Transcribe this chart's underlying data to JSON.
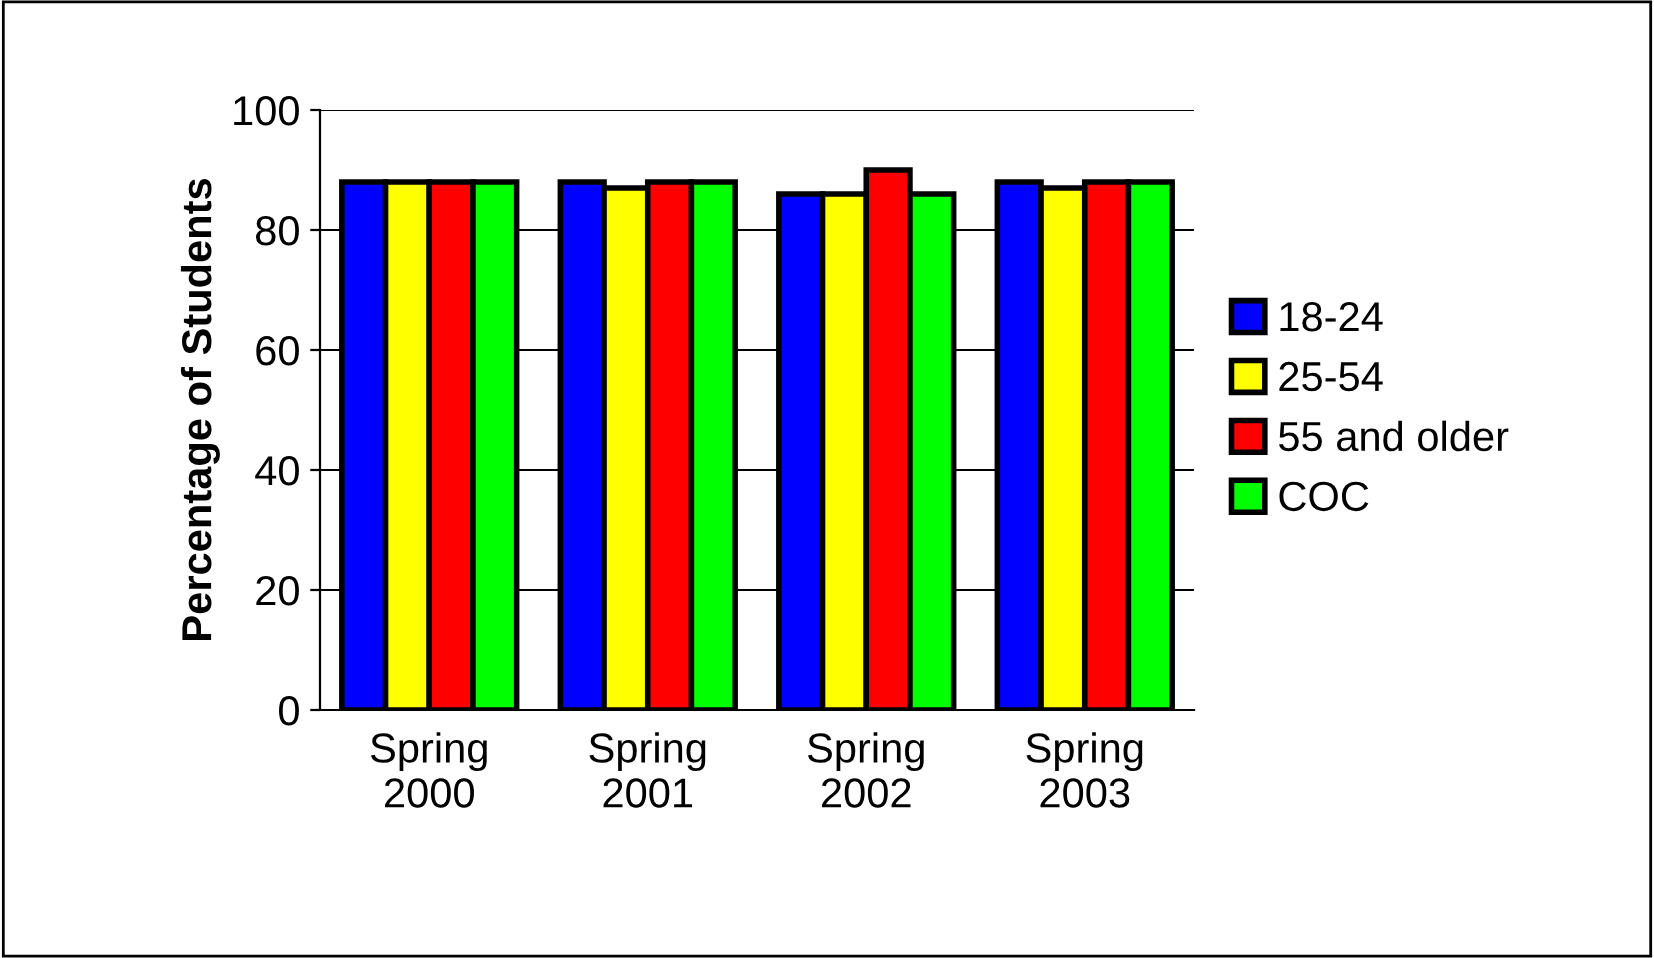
{
  "chart_data": {
    "type": "bar",
    "ylabel": "Percentage of Students",
    "categories": [
      "Spring\n2000",
      "Spring\n2001",
      "Spring\n2002",
      "Spring\n2003"
    ],
    "series": [
      {
        "name": "18-24",
        "color": "#0000ff",
        "values": [
          88,
          88,
          86,
          88
        ]
      },
      {
        "name": "25-54",
        "color": "#ffff00",
        "values": [
          88,
          87,
          86,
          87
        ]
      },
      {
        "name": "55 and older",
        "color": "#ff0000",
        "values": [
          88,
          88,
          90,
          88
        ]
      },
      {
        "name": "COC",
        "color": "#00ff00",
        "values": [
          88,
          88,
          86,
          88
        ]
      }
    ],
    "ylim": [
      0,
      100
    ],
    "yticks": [
      0,
      20,
      40,
      60,
      80,
      100
    ],
    "grid": "y",
    "legend": "right"
  }
}
